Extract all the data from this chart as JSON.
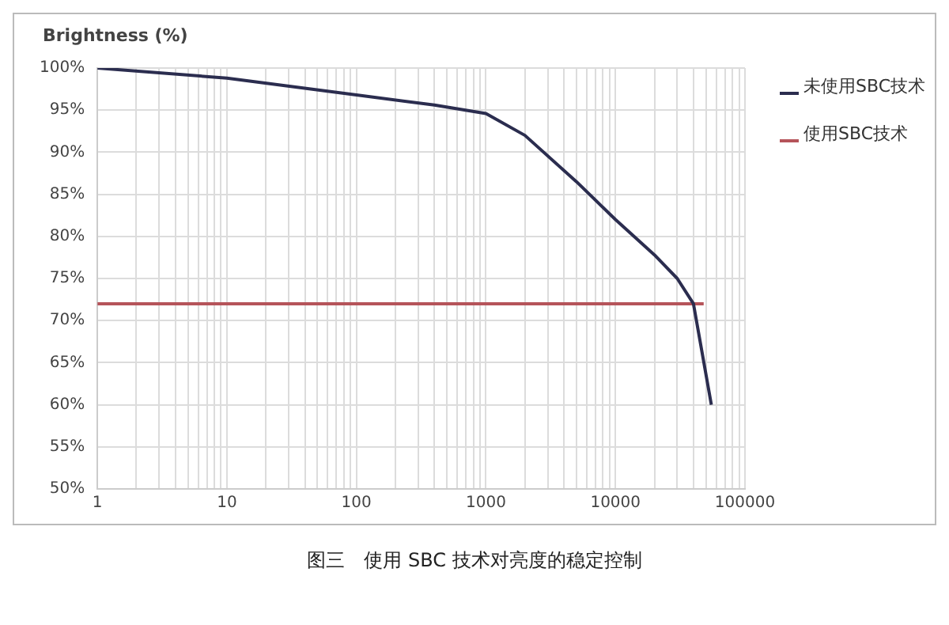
{
  "chart_data": {
    "type": "line",
    "ylabel": "Brightness (%)",
    "annotations": [
      "图三　使用 SBC 技术对亮度的稳定控制"
    ],
    "series": [
      {
        "name": "未使用SBC技术",
        "color": "#2b2d4f",
        "x": [
          1,
          10,
          100,
          400,
          1000,
          2000,
          5000,
          10000,
          20000,
          30000,
          40000,
          55000
        ],
        "values": [
          100,
          98.8,
          96.8,
          95.6,
          94.6,
          92,
          86.5,
          82,
          77.8,
          75,
          72,
          60
        ]
      },
      {
        "name": "使用SBC技术",
        "color": "#b5545a",
        "x": [
          1,
          48000
        ],
        "values": [
          72,
          72
        ]
      }
    ],
    "log": "x",
    "xlim": [
      1,
      100000
    ],
    "ylim": [
      50,
      100
    ],
    "xticks": [
      1,
      {
        "value": 2,
        "label": null
      },
      {
        "value": 3,
        "label": null
      },
      {
        "value": 4,
        "label": null
      },
      {
        "value": 5,
        "label": null
      },
      {
        "value": 6,
        "label": null
      },
      {
        "value": 7,
        "label": null
      },
      {
        "value": 8,
        "label": null
      },
      {
        "value": 9,
        "label": null
      },
      10,
      {
        "value": 20,
        "label": null
      },
      {
        "value": 30,
        "label": null
      },
      {
        "value": 40,
        "label": null
      },
      {
        "value": 50,
        "label": null
      },
      {
        "value": 60,
        "label": null
      },
      {
        "value": 70,
        "label": null
      },
      {
        "value": 80,
        "label": null
      },
      {
        "value": 90,
        "label": null
      },
      100,
      {
        "value": 200,
        "label": null
      },
      {
        "value": 300,
        "label": null
      },
      {
        "value": 400,
        "label": null
      },
      {
        "value": 500,
        "label": null
      },
      {
        "value": 600,
        "label": null
      },
      {
        "value": 700,
        "label": null
      },
      {
        "value": 800,
        "label": null
      },
      {
        "value": 900,
        "label": null
      },
      1000,
      {
        "value": 2000,
        "label": null
      },
      {
        "value": 3000,
        "label": null
      },
      {
        "value": 4000,
        "label": null
      },
      {
        "value": 5000,
        "label": null
      },
      {
        "value": 6000,
        "label": null
      },
      {
        "value": 7000,
        "label": null
      },
      {
        "value": 8000,
        "label": null
      },
      {
        "value": 9000,
        "label": null
      },
      10000,
      {
        "value": 20000,
        "label": null
      },
      {
        "value": 30000,
        "label": null
      },
      {
        "value": 40000,
        "label": null
      },
      {
        "value": 50000,
        "label": null
      },
      {
        "value": 60000,
        "label": null
      },
      {
        "value": 70000,
        "label": null
      },
      {
        "value": 80000,
        "label": null
      },
      {
        "value": 90000,
        "label": null
      },
      100000
    ],
    "yticks": [
      {
        "value": 50,
        "label": "50%"
      },
      {
        "value": 55,
        "label": "55%"
      },
      {
        "value": 60,
        "label": "60%"
      },
      {
        "value": 65,
        "label": "65%"
      },
      {
        "value": 70,
        "label": "70%"
      },
      {
        "value": 75,
        "label": "75%"
      },
      {
        "value": 80,
        "label": "80%"
      },
      {
        "value": 85,
        "label": "85%"
      },
      {
        "value": 90,
        "label": "90%"
      },
      {
        "value": 95,
        "label": "95%"
      },
      {
        "value": 100,
        "label": "100%"
      }
    ],
    "grid": true,
    "legend": "top right",
    "marker": "none",
    "line_style": "solid"
  }
}
